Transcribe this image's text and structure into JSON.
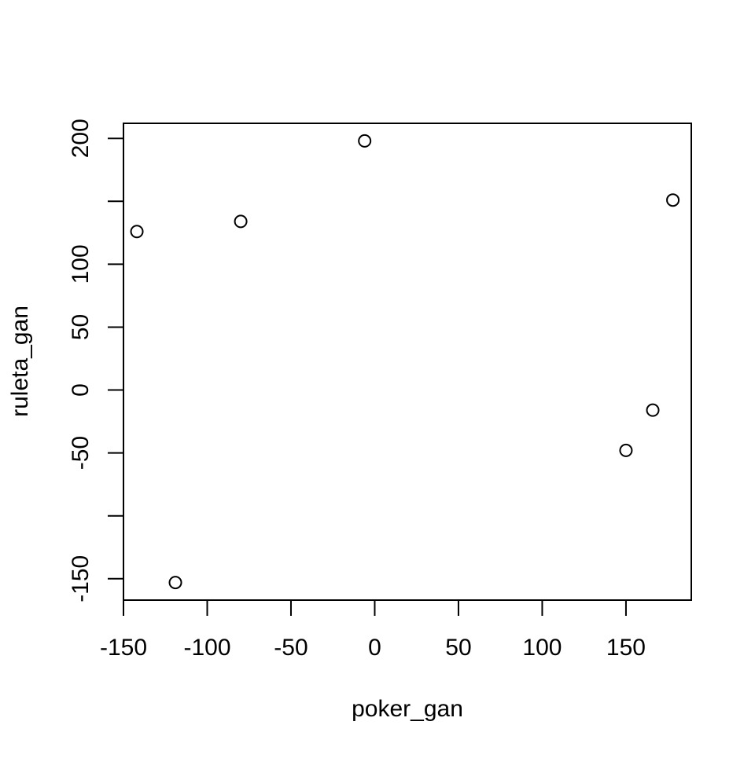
{
  "chart_data": {
    "type": "scatter",
    "title": "",
    "xlabel": "poker_gan",
    "ylabel": "ruleta_gan",
    "xlim": [
      -150,
      189
    ],
    "ylim": [
      -167,
      212
    ],
    "x_ticks": [
      -150,
      -100,
      -50,
      0,
      50,
      100,
      150
    ],
    "x_tick_labels": [
      "-150",
      "-100",
      "-50",
      "0",
      "50",
      "100",
      "150"
    ],
    "y_ticks": [
      -150,
      -100,
      -50,
      0,
      50,
      100,
      150,
      200
    ],
    "y_tick_labels": [
      "-150",
      "",
      "-50",
      "0",
      "50",
      "100",
      "",
      "200"
    ],
    "grid": false,
    "legend": "none",
    "marker": "open-circle",
    "series": [
      {
        "points": [
          {
            "x": -142,
            "y": 126
          },
          {
            "x": -119,
            "y": -153
          },
          {
            "x": -80,
            "y": 134
          },
          {
            "x": -6,
            "y": 198
          },
          {
            "x": 150,
            "y": -48
          },
          {
            "x": 166,
            "y": -16
          },
          {
            "x": 178,
            "y": 151
          }
        ]
      }
    ]
  }
}
